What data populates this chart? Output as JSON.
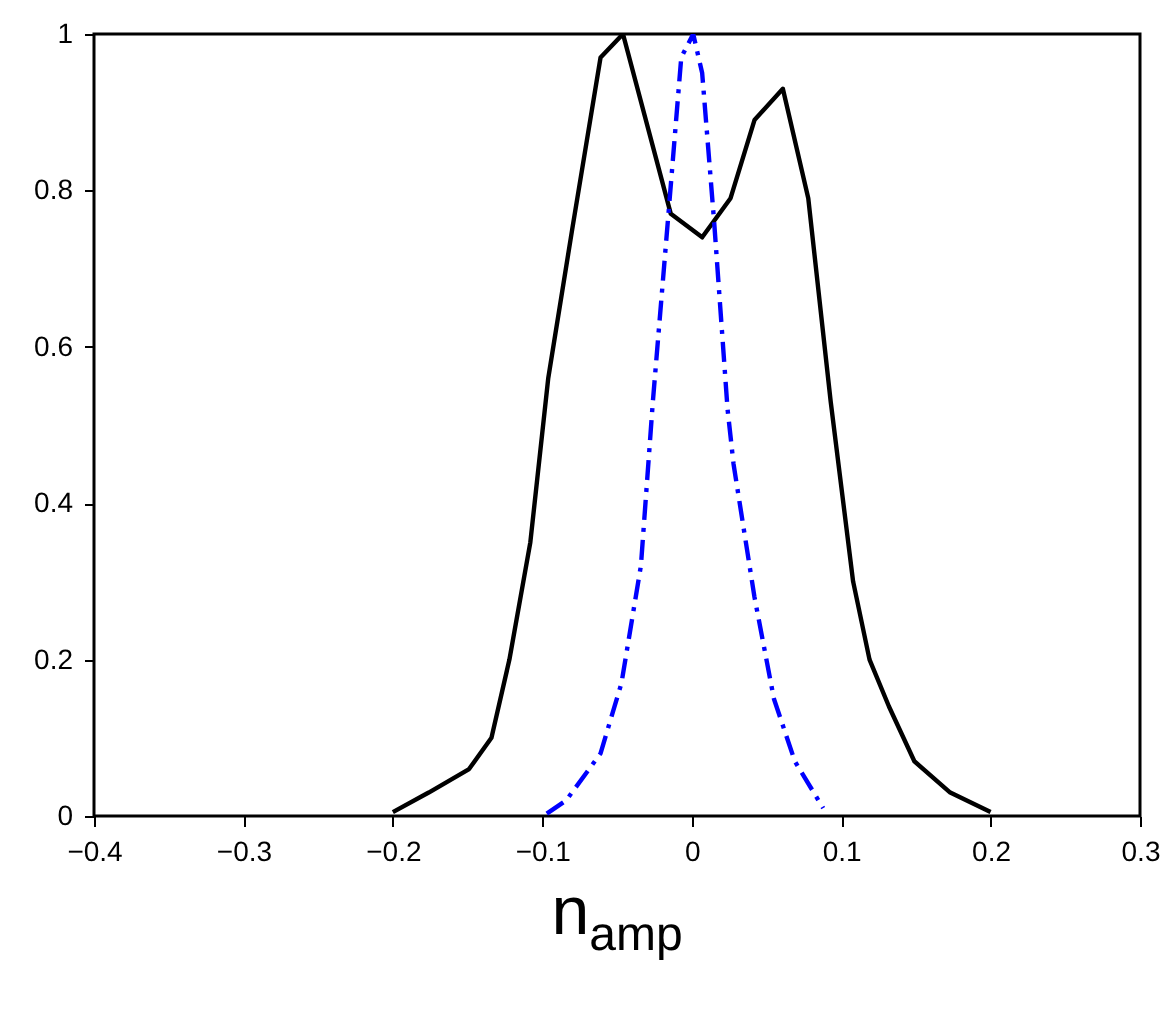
{
  "chart_data": {
    "type": "line",
    "xlabel": "n$_{amp}$",
    "xlim": [
      -0.4,
      0.3
    ],
    "xticks": [
      -0.4,
      -0.3,
      -0.2,
      -0.1,
      0,
      0.1,
      0.2,
      0.3
    ],
    "ylim": [
      0,
      1
    ],
    "yticks": [
      0,
      0.2,
      0.4,
      0.6,
      0.8,
      1
    ],
    "grid": false,
    "marker": "none",
    "series": [
      {
        "color": "#000000",
        "line_style": "solid",
        "x": [
          -0.2,
          -0.176,
          -0.149,
          -0.134,
          -0.122,
          -0.108,
          -0.096,
          -0.08,
          -0.061,
          -0.046,
          -0.014,
          0.007,
          0.026,
          0.042,
          0.061,
          0.078,
          0.093,
          0.108,
          0.119,
          0.132,
          0.149,
          0.173,
          0.2
        ],
        "values": [
          0.005,
          0.03,
          0.06,
          0.1,
          0.2,
          0.35,
          0.56,
          0.75,
          0.97,
          1.0,
          0.77,
          0.74,
          0.79,
          0.89,
          0.93,
          0.79,
          0.53,
          0.3,
          0.2,
          0.14,
          0.07,
          0.03,
          0.005
        ]
      },
      {
        "color": "#0000ff",
        "line_style": "dashed",
        "x": [
          -0.097,
          -0.084,
          -0.061,
          -0.047,
          -0.034,
          -0.026,
          -0.016,
          -0.007,
          0.001,
          0.007,
          0.015,
          0.024,
          0.028,
          0.042,
          0.055,
          0.069,
          0.088
        ],
        "values": [
          0.003,
          0.02,
          0.08,
          0.17,
          0.32,
          0.53,
          0.76,
          0.97,
          1.0,
          0.95,
          0.76,
          0.52,
          0.45,
          0.28,
          0.15,
          0.07,
          0.01
        ]
      }
    ]
  }
}
